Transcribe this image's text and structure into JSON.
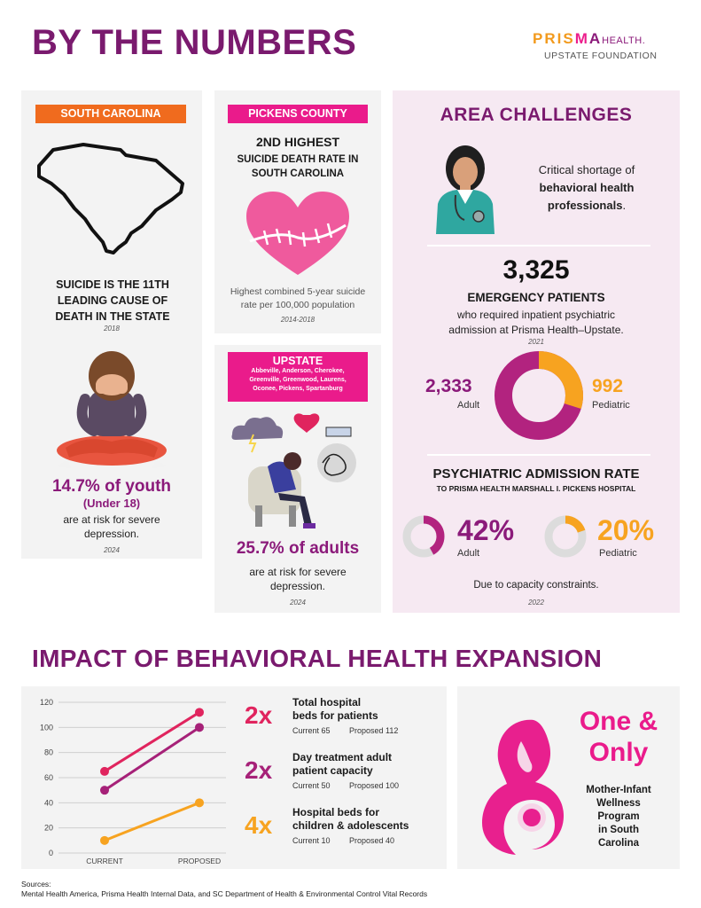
{
  "header": {
    "title": "BY THE NUMBERS",
    "logo_brand_a": "PRIS",
    "logo_brand_b": "M",
    "logo_brand_c": "A",
    "logo_brand_d": "HEALTH.",
    "logo_sub": "UPSTATE FOUNDATION"
  },
  "south_carolina": {
    "tag": "SOUTH CAROLINA",
    "stat_line1": "SUICIDE IS THE 11TH",
    "stat_line2": "LEADING CAUSE OF",
    "stat_line3": "DEATH IN THE STATE",
    "stat_year": "2018",
    "youth_pct": "14.7% of youth",
    "youth_under": "(Under 18)",
    "youth_line1": "are at risk for severe",
    "youth_line2": "depression.",
    "youth_year": "2024"
  },
  "pickens": {
    "tag": "PICKENS COUNTY",
    "rank": "2ND HIGHEST",
    "line1": "SUICIDE DEATH RATE IN",
    "line2": "SOUTH CAROLINA",
    "note1": "Highest combined 5-year suicide",
    "note2": "rate per 100,000 population",
    "years": "2014-2018"
  },
  "upstate": {
    "tag": "UPSTATE",
    "counties1": "Abbeville, Anderson, Cherokee,",
    "counties2": "Greenville, Greenwood, Laurens,",
    "counties3": "Oconee, Pickens, Spartanburg",
    "adults_pct": "25.7% of adults",
    "line1": "are at risk for severe",
    "line2": "depression.",
    "year": "2024"
  },
  "area": {
    "title": "AREA CHALLENGES",
    "shortage1": "Critical shortage of",
    "shortage2": "behavioral health",
    "shortage3": "professionals",
    "shortage_period": ".",
    "er_count": "3,325",
    "er_label": "EMERGENCY PATIENTS",
    "er_line1": "who required inpatient psychiatric",
    "er_line2": "admission at Prisma Health–Upstate.",
    "er_year": "2021",
    "adult_count": "2,333",
    "adult_label": "Adult",
    "ped_count": "992",
    "ped_label": "Pediatric",
    "psych_title": "PSYCHIATRIC ADMISSION RATE",
    "psych_sub": "TO PRISMA HEALTH MARSHALL I. PICKENS HOSPITAL",
    "adult_rate": "42%",
    "adult_rate_label": "Adult",
    "ped_rate": "20%",
    "ped_rate_label": "Pediatric",
    "capacity_note": "Due to capacity constraints.",
    "capacity_year": "2022"
  },
  "colors": {
    "purple": "#7a1a6e",
    "magenta": "#b2237f",
    "pink": "#ea1b8b",
    "orange": "#f7a320",
    "tag_orange": "#f06b1e",
    "light_pink_panel": "#f6e9f2",
    "gray_panel": "#f3f3f3"
  },
  "impact": {
    "title": "IMPACT OF BEHAVIORAL HEALTH EXPANSION",
    "items": [
      {
        "mult": "2x",
        "label1": "Total hospital",
        "label2": "beds for patients",
        "current": "Current 65",
        "proposed": "Proposed 112",
        "color": "#e0245e"
      },
      {
        "mult": "2x",
        "label1": "Day treatment adult",
        "label2": "patient capacity",
        "current": "Current 50",
        "proposed": "Proposed 100",
        "color": "#a62178"
      },
      {
        "mult": "4x",
        "label1": "Hospital beds for",
        "label2": "children & adolescents",
        "current": "Current 10",
        "proposed": "Proposed 40",
        "color": "#f7a320"
      }
    ],
    "one_only1": "One &",
    "one_only2": "Only",
    "program1": "Mother-Infant",
    "program2": "Wellness",
    "program3": "Program",
    "program4": "in South",
    "program5": "Carolina"
  },
  "chart_data": {
    "type": "line",
    "categories": [
      "CURRENT",
      "PROPOSED"
    ],
    "series": [
      {
        "values": [
          65,
          112
        ],
        "color": "#e0245e"
      },
      {
        "values": [
          50,
          100
        ],
        "color": "#a62178"
      },
      {
        "values": [
          10,
          40
        ],
        "color": "#f7a320"
      }
    ],
    "yticks": [
      0,
      20,
      40,
      60,
      80,
      100,
      120
    ],
    "ylim": [
      0,
      120
    ],
    "grid": true
  },
  "donuts": {
    "er_split": {
      "adult": 2333,
      "pediatric": 992
    },
    "adult_rate": 0.42,
    "ped_rate": 0.2
  },
  "footer": {
    "sources_label": "Sources:",
    "sources_text": "Mental Health America, Prisma Health Internal Data, and SC Department of Health & Environmental Control Vital Records"
  }
}
